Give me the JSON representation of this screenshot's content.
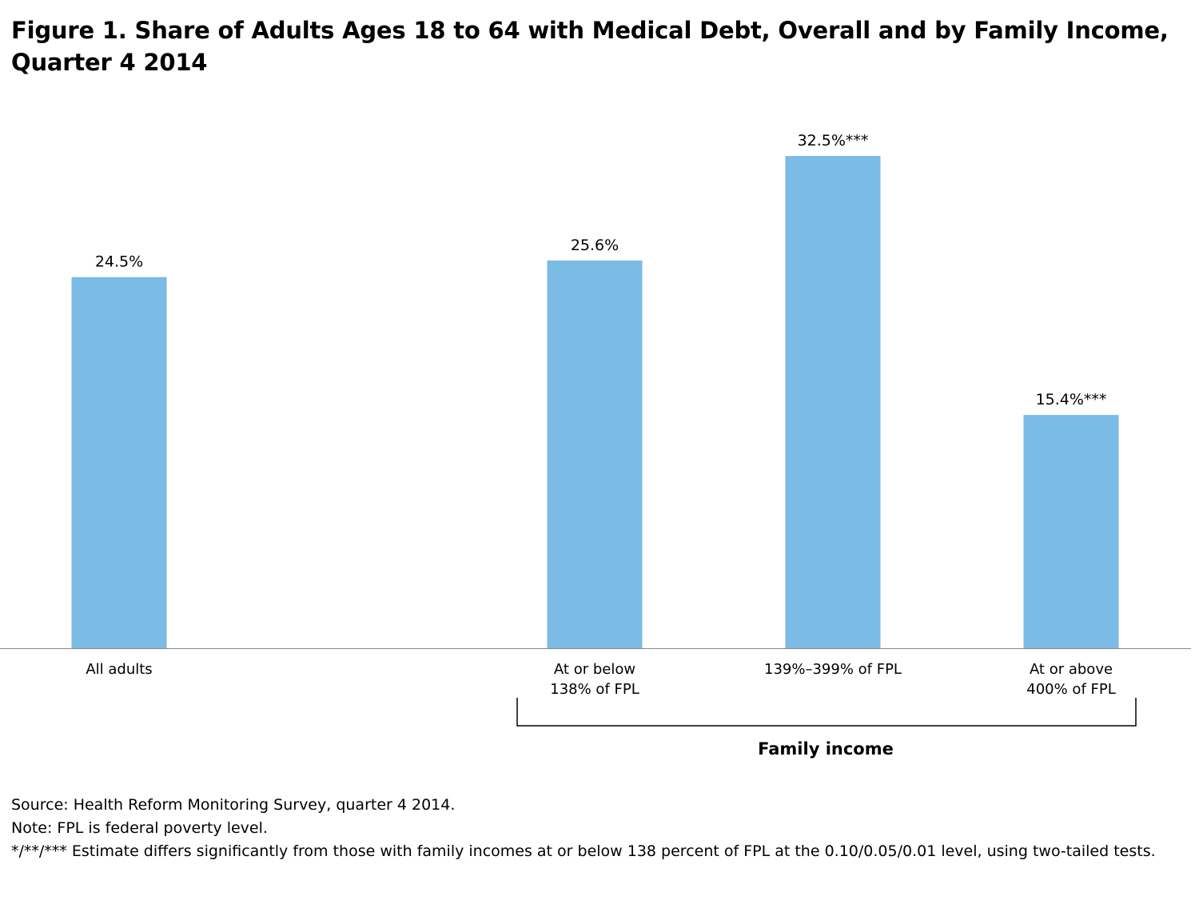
{
  "title": "Figure 1. Share of Adults Ages 18 to 64 with Medical Debt, Overall and by Family Income, Quarter 4 2014",
  "chart_data": {
    "type": "bar",
    "categories": [
      "All adults",
      "At or below 138% of FPL",
      "139%–399% of FPL",
      "At or above 400% of FPL"
    ],
    "category_label_lines": [
      [
        "All adults"
      ],
      [
        "At or below",
        "138% of FPL"
      ],
      [
        "139%–399% of FPL"
      ],
      [
        "At or above",
        "400% of FPL"
      ]
    ],
    "values": [
      24.5,
      25.6,
      32.5,
      15.4
    ],
    "data_labels": [
      "24.5%",
      "25.6%",
      "32.5%***",
      "15.4%***"
    ],
    "group_label": "Family income",
    "grid": false,
    "bar_color": "#7bbbe5"
  },
  "notes": {
    "source": "Source: Health Reform Monitoring Survey, quarter 4 2014.",
    "note": "Note: FPL is federal poverty level.",
    "significance": "*/**/*** Estimate differs significantly from those with family incomes at or below 138 percent of FPL at the 0.10/0.05/0.01 level, using two-tailed tests."
  }
}
